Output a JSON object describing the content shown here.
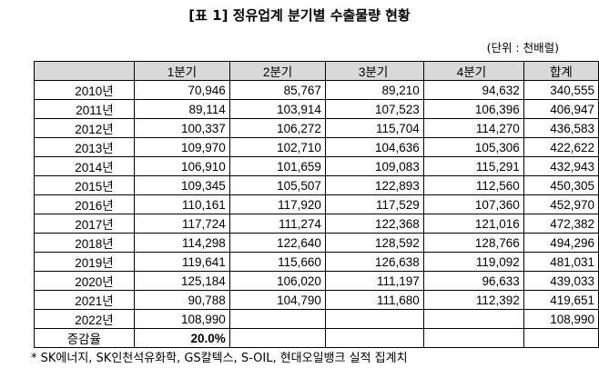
{
  "title": "[표 1] 정유업계 분기별 수출물량 현황",
  "unit": "(단위 : 천배럴)",
  "table": {
    "header": [
      "1분기",
      "2분기",
      "3분기",
      "4분기",
      "합계"
    ],
    "rows": [
      [
        "2010년",
        "70,946",
        "85,767",
        "89,210",
        "94,632",
        "340,555"
      ],
      [
        "2011년",
        "89,114",
        "103,914",
        "107,523",
        "106,396",
        "406,947"
      ],
      [
        "2012년",
        "100,337",
        "106,272",
        "115,704",
        "114,270",
        "436,583"
      ],
      [
        "2013년",
        "109,970",
        "102,710",
        "104,636",
        "105,306",
        "422,622"
      ],
      [
        "2014년",
        "106,910",
        "101,659",
        "109,083",
        "115,291",
        "432,943"
      ],
      [
        "2015년",
        "109,345",
        "105,507",
        "122,893",
        "112,560",
        "450,305"
      ],
      [
        "2016년",
        "110,161",
        "117,920",
        "117,529",
        "107,360",
        "452,970"
      ],
      [
        "2017년",
        "117,724",
        "111,274",
        "122,368",
        "121,016",
        "472,382"
      ],
      [
        "2018년",
        "114,298",
        "122,640",
        "128,592",
        "128,766",
        "494,296"
      ],
      [
        "2019년",
        "119,641",
        "115,660",
        "126,638",
        "119,092",
        "481,031"
      ],
      [
        "2020년",
        "125,184",
        "106,020",
        "111,197",
        "96,633",
        "439,033"
      ],
      [
        "2021년",
        "90,788",
        "104,790",
        "111,680",
        "112,392",
        "419,651"
      ],
      [
        "2022년",
        "108,990",
        null,
        null,
        null,
        "108,990"
      ],
      [
        "증감율",
        "20.0%",
        null,
        null,
        null,
        null
      ]
    ]
  },
  "footnote": "* SK에너지, SK인천석유화학, GS칼텍스, S-OIL, 현대오일뱅크 실적 집계치"
}
